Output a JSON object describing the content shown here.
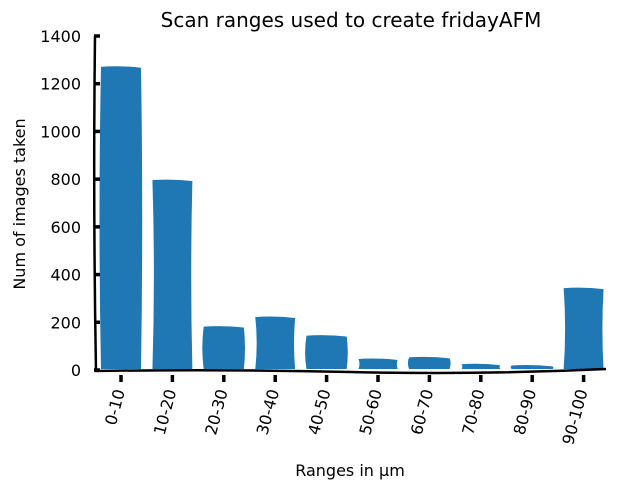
{
  "chart_data": {
    "type": "bar",
    "title": "Scan ranges used to create fridayAFM",
    "xlabel": "Ranges in μm",
    "ylabel": "Num of images taken",
    "categories": [
      "0-10",
      "10-20",
      "20-30",
      "30-40",
      "40-50",
      "50-60",
      "60-70",
      "70-80",
      "80-90",
      "90-100"
    ],
    "values": [
      1275,
      800,
      186,
      226,
      148,
      50,
      57,
      28,
      23,
      347
    ],
    "ylim": [
      0,
      1400
    ],
    "yticks": [
      0,
      200,
      400,
      600,
      800,
      1000,
      1200,
      1400
    ],
    "grid": false,
    "bar_color": "#1f77b4",
    "style": "xkcd"
  }
}
